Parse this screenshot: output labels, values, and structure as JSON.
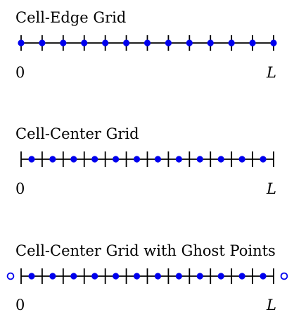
{
  "diagrams": [
    {
      "title": "Cell-Edge Grid",
      "cells": 12,
      "point_placement": "edges",
      "ghost_points": false,
      "start_label": "0",
      "end_label": "L"
    },
    {
      "title": "Cell-Center Grid",
      "cells": 12,
      "point_placement": "centers",
      "ghost_points": false,
      "start_label": "0",
      "end_label": "L"
    },
    {
      "title": "Cell-Center Grid with Ghost Points",
      "cells": 12,
      "point_placement": "centers",
      "ghost_points": true,
      "start_label": "0",
      "end_label": "L"
    }
  ],
  "colors": {
    "line": "#000000",
    "point": "#0000ee",
    "ghost_point_fill": "#ffffff"
  }
}
